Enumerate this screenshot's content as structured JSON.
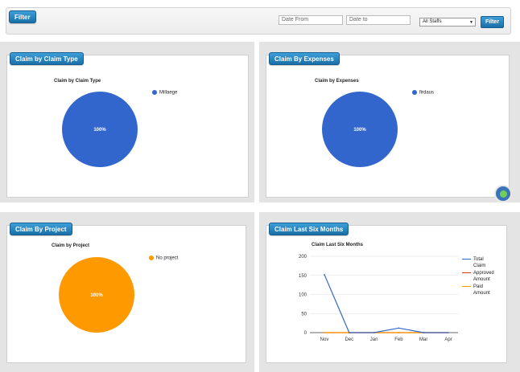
{
  "filter": {
    "title": "Filter",
    "date_from_placeholder": "Date From",
    "date_to_placeholder": "Date to",
    "staff_selected": "All Staffs",
    "button_label": "Filter"
  },
  "panels": {
    "claim_type": {
      "tag": "Claim by Claim Type",
      "chart_title": "Claim by Claim Type",
      "legend": "Millaege",
      "slice_label": "100%"
    },
    "expenses": {
      "tag": "Claim By Expenses",
      "chart_title": "Claim by Expenses",
      "legend": "firdaus",
      "slice_label": "100%"
    },
    "project": {
      "tag": "Claim By Project",
      "chart_title": "Claim by Project",
      "legend": "No project",
      "slice_label": "100%"
    },
    "six_months": {
      "tag": "Claim Last Six Months",
      "chart_title": "Claim Last Six Months",
      "legend": [
        "Total Claim",
        "Approved Amount",
        "Paid Amount"
      ]
    }
  },
  "colors": {
    "pie_blue": "#3366cc",
    "pie_orange": "#ff9900",
    "line_total": "#3366cc",
    "line_approved": "#dc3912",
    "line_paid": "#ff9900",
    "tag_blue": "#1a6fa8"
  },
  "chart_data": [
    {
      "type": "pie",
      "title": "Claim by Claim Type",
      "categories": [
        "Millaege"
      ],
      "values": [
        100
      ]
    },
    {
      "type": "pie",
      "title": "Claim by Expenses",
      "categories": [
        "firdaus"
      ],
      "values": [
        100
      ]
    },
    {
      "type": "pie",
      "title": "Claim by Project",
      "categories": [
        "No project"
      ],
      "values": [
        100
      ]
    },
    {
      "type": "line",
      "title": "Claim Last Six Months",
      "categories": [
        "Nov",
        "Dec",
        "Jan",
        "Feb",
        "Mar",
        "Apr"
      ],
      "ylim": [
        0,
        200
      ],
      "yticks": [
        "200",
        "150",
        "100",
        "50",
        "0"
      ],
      "series": [
        {
          "name": "Total Claim",
          "values": [
            152,
            0,
            0,
            12,
            0,
            0
          ]
        },
        {
          "name": "Approved Amount",
          "values": [
            0,
            0,
            0,
            0,
            0,
            0
          ]
        },
        {
          "name": "Paid Amount",
          "values": [
            0,
            0,
            0,
            0,
            0,
            0
          ]
        }
      ],
      "legend_position": "right",
      "grid": true
    }
  ]
}
